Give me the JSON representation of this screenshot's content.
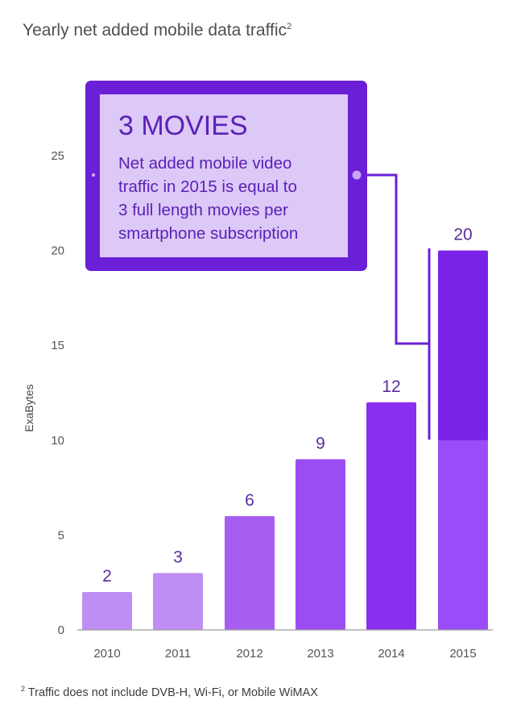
{
  "title": "Yearly net added mobile data traffic",
  "title_sup": "2",
  "footnote": {
    "sup": "2",
    "text": "Traffic does not include DVB-H, Wi-Fi, or Mobile WiMAX"
  },
  "callout": {
    "heading": "3 MOVIES",
    "lines": [
      "Net added mobile video",
      "traffic in 2015 is equal to",
      "3 full length movies per",
      "smartphone subscription"
    ]
  },
  "colors": {
    "tablet_frame": "#6b1fd6",
    "tablet_screen": "#dcc9f7",
    "connector": "#6b1fd6",
    "video_segment": "#7a23e6"
  },
  "chart_data": {
    "type": "bar",
    "title": "Yearly net added mobile data traffic",
    "ylabel": "ExaBytes",
    "xlabel": "",
    "ylim": [
      0,
      25
    ],
    "yticks": [
      0,
      5,
      10,
      15,
      20,
      25
    ],
    "categories": [
      "2010",
      "2011",
      "2012",
      "2013",
      "2014",
      "2015"
    ],
    "values": [
      2,
      3,
      6,
      9,
      12,
      20
    ],
    "bar_colors": [
      "#bf8ef4",
      "#bf8ef4",
      "#a55ef0",
      "#9b4df4",
      "#8a2ff0",
      "#9a4cf8"
    ],
    "highlight": {
      "category": "2015",
      "from": 10,
      "to": 20,
      "color": "#7a23e6"
    },
    "grid": false
  }
}
